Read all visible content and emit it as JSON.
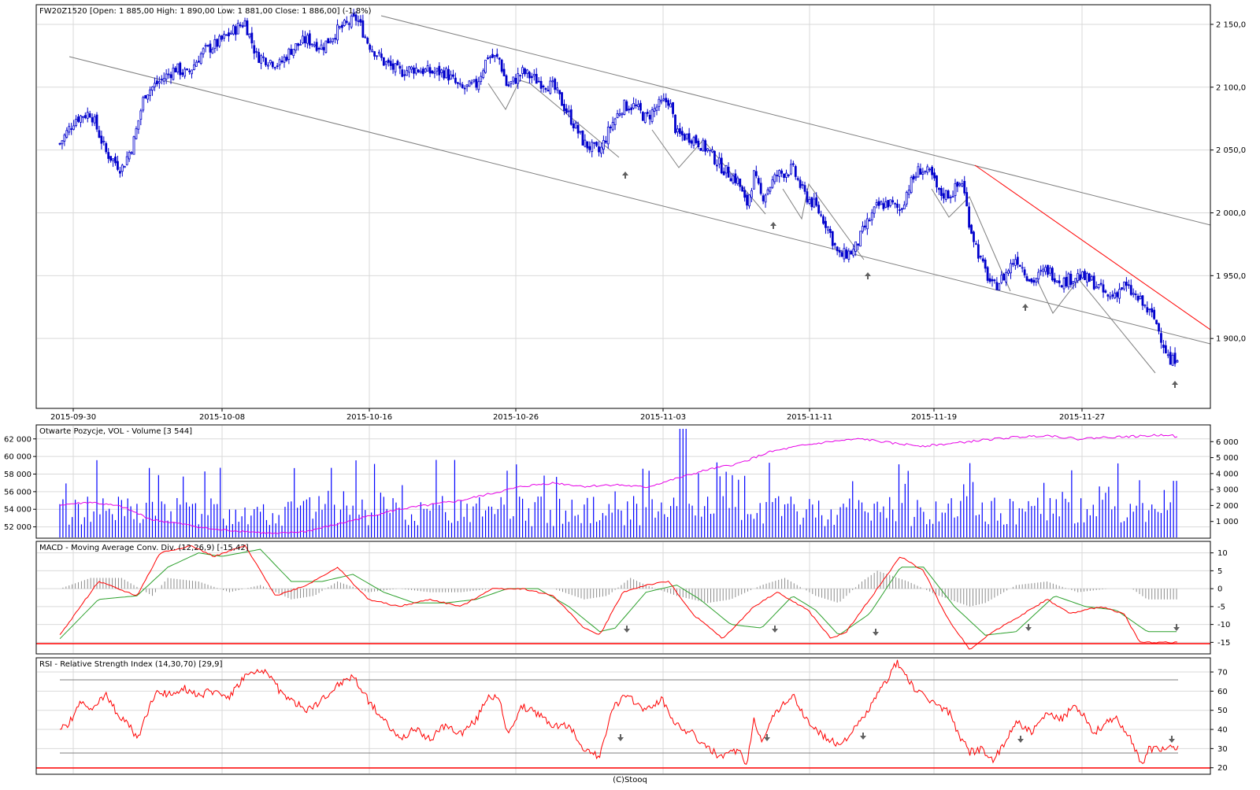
{
  "app": {
    "footer": "(C)Stooq"
  },
  "colors": {
    "candle": "#0000cc",
    "channel": "#7f7f7f",
    "resistance": "#ff0000",
    "volume": "#0000ff",
    "open_interest": "#e600e6",
    "macd": "#ff0000",
    "signal": "#2ca02c",
    "histogram": "#8c8c8c",
    "rsi": "#ff0000",
    "grid": "#d9d9d9",
    "arrow": "#606060"
  },
  "chart_data": [
    {
      "id": "price",
      "type": "candlestick",
      "title": "FW20Z1520 [Open: 1 885,00  High: 1 890,00  Low: 1 881,00  Close: 1 886,00] (-1,8%)",
      "x_ticks": [
        "2015-09-30",
        "2015-10-08",
        "2015-10-16",
        "2015-10-26",
        "2015-11-03",
        "2015-11-11",
        "2015-11-19",
        "2015-11-27"
      ],
      "y_ticks": [
        2150,
        2100,
        2050,
        2000,
        1950,
        1900
      ],
      "y_tick_labels": [
        "2 150,0",
        "2 100,0",
        "2 050,0",
        "2 000,0",
        "1 950,0",
        "1 900,0"
      ],
      "ylim": [
        1845,
        2165
      ],
      "anchors": [
        [
          0,
          2055
        ],
        [
          20,
          2075
        ],
        [
          40,
          2080
        ],
        [
          60,
          2048
        ],
        [
          80,
          2035
        ],
        [
          95,
          2055
        ],
        [
          110,
          2095
        ],
        [
          130,
          2105
        ],
        [
          150,
          2115
        ],
        [
          165,
          2110
        ],
        [
          185,
          2128
        ],
        [
          205,
          2135
        ],
        [
          225,
          2145
        ],
        [
          240,
          2152
        ],
        [
          255,
          2125
        ],
        [
          270,
          2122
        ],
        [
          285,
          2118
        ],
        [
          300,
          2130
        ],
        [
          320,
          2138
        ],
        [
          340,
          2132
        ],
        [
          360,
          2145
        ],
        [
          385,
          2155
        ],
        [
          400,
          2135
        ],
        [
          420,
          2120
        ],
        [
          440,
          2112
        ],
        [
          460,
          2115
        ],
        [
          480,
          2112
        ],
        [
          500,
          2112
        ],
        [
          520,
          2098
        ],
        [
          540,
          2102
        ],
        [
          555,
          2125
        ],
        [
          570,
          2122
        ],
        [
          580,
          2100
        ],
        [
          600,
          2112
        ],
        [
          620,
          2105
        ],
        [
          640,
          2100
        ],
        [
          660,
          2078
        ],
        [
          680,
          2055
        ],
        [
          700,
          2048
        ],
        [
          715,
          2070
        ],
        [
          730,
          2085
        ],
        [
          745,
          2085
        ],
        [
          760,
          2075
        ],
        [
          775,
          2085
        ],
        [
          790,
          2090
        ],
        [
          800,
          2062
        ],
        [
          820,
          2060
        ],
        [
          840,
          2050
        ],
        [
          860,
          2035
        ],
        [
          880,
          2025
        ],
        [
          890,
          2005
        ],
        [
          900,
          2030
        ],
        [
          910,
          2012
        ],
        [
          930,
          2030
        ],
        [
          950,
          2035
        ],
        [
          965,
          2015
        ],
        [
          980,
          2005
        ],
        [
          995,
          1990
        ],
        [
          1010,
          1965
        ],
        [
          1030,
          1970
        ],
        [
          1045,
          1990
        ],
        [
          1060,
          2005
        ],
        [
          1075,
          2008
        ],
        [
          1090,
          2002
        ],
        [
          1100,
          2020
        ],
        [
          1115,
          2035
        ],
        [
          1130,
          2030
        ],
        [
          1140,
          2015
        ],
        [
          1155,
          2015
        ],
        [
          1170,
          2025
        ],
        [
          1180,
          1990
        ],
        [
          1195,
          1960
        ],
        [
          1210,
          1940
        ],
        [
          1225,
          1950
        ],
        [
          1240,
          1965
        ],
        [
          1260,
          1945
        ],
        [
          1280,
          1955
        ],
        [
          1300,
          1945
        ],
        [
          1320,
          1950
        ],
        [
          1340,
          1945
        ],
        [
          1360,
          1932
        ],
        [
          1380,
          1942
        ],
        [
          1400,
          1930
        ],
        [
          1420,
          1915
        ],
        [
          1430,
          1898
        ],
        [
          1440,
          1880
        ],
        [
          1450,
          1888
        ]
      ]
    },
    {
      "id": "volume",
      "type": "bar",
      "title": "Otwarte Pozycje, VOL - Volume [3 544]",
      "left_ticks": [
        62000,
        60000,
        58000,
        56000,
        54000,
        52000
      ],
      "left_tick_labels": [
        "62 000",
        "60 000",
        "58 000",
        "56 000",
        "54 000",
        "52 000"
      ],
      "right_ticks": [
        6000,
        5000,
        4000,
        3000,
        2000,
        1000
      ],
      "right_tick_labels": [
        "6 000",
        "5 000",
        "4 000",
        "3 000",
        "2 000",
        "1 000"
      ],
      "left_lim": [
        50800,
        63500
      ],
      "right_lim": [
        0,
        7000
      ],
      "open_interest_anchors": [
        [
          0,
          54500
        ],
        [
          40,
          54800
        ],
        [
          80,
          54300
        ],
        [
          120,
          52800
        ],
        [
          160,
          52300
        ],
        [
          200,
          51700
        ],
        [
          240,
          51500
        ],
        [
          280,
          51200
        ],
        [
          320,
          51500
        ],
        [
          360,
          52300
        ],
        [
          400,
          53200
        ],
        [
          440,
          54000
        ],
        [
          480,
          54500
        ],
        [
          520,
          55000
        ],
        [
          560,
          55800
        ],
        [
          600,
          56600
        ],
        [
          640,
          57000
        ],
        [
          680,
          56600
        ],
        [
          720,
          56800
        ],
        [
          760,
          56500
        ],
        [
          800,
          57500
        ],
        [
          840,
          58500
        ],
        [
          880,
          59200
        ],
        [
          920,
          60500
        ],
        [
          960,
          61200
        ],
        [
          1000,
          61700
        ],
        [
          1040,
          62000
        ],
        [
          1080,
          61500
        ],
        [
          1120,
          61200
        ],
        [
          1160,
          61500
        ],
        [
          1200,
          61900
        ],
        [
          1240,
          62200
        ],
        [
          1280,
          62400
        ],
        [
          1320,
          62000
        ],
        [
          1360,
          62200
        ],
        [
          1400,
          62300
        ],
        [
          1440,
          62500
        ],
        [
          1450,
          62100
        ]
      ]
    },
    {
      "id": "macd",
      "type": "line",
      "title": "MACD - Moving Average Conv. Div. (12,26,9) [-15,42]",
      "y_ticks": [
        10,
        5,
        0,
        -5,
        -10,
        -15
      ],
      "ylim": [
        -18,
        13
      ],
      "macd_anchors": [
        [
          0,
          -13
        ],
        [
          50,
          2
        ],
        [
          100,
          -2
        ],
        [
          130,
          10
        ],
        [
          170,
          12
        ],
        [
          200,
          9
        ],
        [
          240,
          12
        ],
        [
          280,
          -2
        ],
        [
          320,
          1
        ],
        [
          360,
          6
        ],
        [
          400,
          -3
        ],
        [
          440,
          -5
        ],
        [
          480,
          -3
        ],
        [
          520,
          -5
        ],
        [
          560,
          0
        ],
        [
          600,
          0
        ],
        [
          640,
          -2
        ],
        [
          680,
          -11
        ],
        [
          700,
          -13
        ],
        [
          730,
          -1
        ],
        [
          760,
          1
        ],
        [
          790,
          2
        ],
        [
          820,
          -7
        ],
        [
          860,
          -14
        ],
        [
          900,
          -5
        ],
        [
          930,
          -1
        ],
        [
          970,
          -6
        ],
        [
          1000,
          -14
        ],
        [
          1020,
          -12
        ],
        [
          1060,
          0
        ],
        [
          1090,
          9
        ],
        [
          1120,
          5
        ],
        [
          1150,
          -8
        ],
        [
          1180,
          -17
        ],
        [
          1210,
          -12
        ],
        [
          1250,
          -7
        ],
        [
          1280,
          -3
        ],
        [
          1310,
          -7
        ],
        [
          1350,
          -5
        ],
        [
          1380,
          -7
        ],
        [
          1400,
          -15
        ],
        [
          1410,
          -15
        ]
      ],
      "signal_anchors": [
        [
          0,
          -14
        ],
        [
          50,
          -3
        ],
        [
          100,
          -2
        ],
        [
          140,
          6
        ],
        [
          180,
          10
        ],
        [
          210,
          9
        ],
        [
          260,
          11
        ],
        [
          300,
          2
        ],
        [
          340,
          2
        ],
        [
          380,
          4
        ],
        [
          420,
          -1
        ],
        [
          460,
          -4
        ],
        [
          500,
          -4
        ],
        [
          540,
          -3
        ],
        [
          580,
          0
        ],
        [
          620,
          0
        ],
        [
          660,
          -5
        ],
        [
          700,
          -12
        ],
        [
          720,
          -11
        ],
        [
          760,
          -1
        ],
        [
          800,
          1
        ],
        [
          830,
          -3
        ],
        [
          870,
          -10
        ],
        [
          910,
          -11
        ],
        [
          950,
          -2
        ],
        [
          980,
          -6
        ],
        [
          1010,
          -13
        ],
        [
          1050,
          -7
        ],
        [
          1090,
          6
        ],
        [
          1120,
          6
        ],
        [
          1160,
          -5
        ],
        [
          1200,
          -13
        ],
        [
          1240,
          -12
        ],
        [
          1290,
          -2
        ],
        [
          1330,
          -5
        ],
        [
          1370,
          -6
        ],
        [
          1410,
          -12
        ]
      ],
      "hist_anchors": [
        [
          0,
          0
        ],
        [
          40,
          3
        ],
        [
          80,
          3
        ],
        [
          120,
          -2
        ],
        [
          140,
          3
        ],
        [
          180,
          2
        ],
        [
          220,
          -1
        ],
        [
          260,
          1
        ],
        [
          300,
          -3
        ],
        [
          330,
          -2
        ],
        [
          360,
          2
        ],
        [
          400,
          -1
        ],
        [
          440,
          0
        ],
        [
          480,
          -1
        ],
        [
          520,
          -1
        ],
        [
          560,
          0
        ],
        [
          600,
          0
        ],
        [
          640,
          0
        ],
        [
          680,
          -3
        ],
        [
          710,
          -2
        ],
        [
          740,
          3
        ],
        [
          760,
          1
        ],
        [
          800,
          -2
        ],
        [
          840,
          -4
        ],
        [
          870,
          -3
        ],
        [
          910,
          1
        ],
        [
          940,
          3
        ],
        [
          980,
          -2
        ],
        [
          1010,
          -4
        ],
        [
          1040,
          2
        ],
        [
          1060,
          5
        ],
        [
          1100,
          2
        ],
        [
          1140,
          -2
        ],
        [
          1180,
          -5
        ],
        [
          1200,
          -4
        ],
        [
          1240,
          1
        ],
        [
          1280,
          2
        ],
        [
          1320,
          -1
        ],
        [
          1360,
          0
        ],
        [
          1390,
          0
        ],
        [
          1410,
          -3
        ]
      ]
    },
    {
      "id": "rsi",
      "type": "line",
      "title": "RSI - Relative Strength Index (14,30,70) [29,9]",
      "y_ticks": [
        70,
        60,
        50,
        40,
        30,
        20
      ],
      "ylim": [
        17,
        77
      ],
      "levels": [
        70,
        30
      ],
      "rsi_anchors": [
        [
          0,
          40
        ],
        [
          10,
          42
        ],
        [
          25,
          53
        ],
        [
          45,
          52
        ],
        [
          60,
          58
        ],
        [
          75,
          48
        ],
        [
          90,
          42
        ],
        [
          100,
          35
        ],
        [
          110,
          45
        ],
        [
          125,
          60
        ],
        [
          140,
          58
        ],
        [
          160,
          62
        ],
        [
          180,
          58
        ],
        [
          200,
          60
        ],
        [
          220,
          57
        ],
        [
          240,
          68
        ],
        [
          260,
          70
        ],
        [
          270,
          70
        ],
        [
          285,
          60
        ],
        [
          300,
          55
        ],
        [
          320,
          50
        ],
        [
          340,
          55
        ],
        [
          360,
          63
        ],
        [
          380,
          68
        ],
        [
          400,
          55
        ],
        [
          420,
          45
        ],
        [
          440,
          35
        ],
        [
          460,
          40
        ],
        [
          480,
          35
        ],
        [
          500,
          42
        ],
        [
          520,
          38
        ],
        [
          540,
          45
        ],
        [
          555,
          58
        ],
        [
          570,
          55
        ],
        [
          580,
          38
        ],
        [
          600,
          52
        ],
        [
          620,
          48
        ],
        [
          640,
          42
        ],
        [
          660,
          42
        ],
        [
          680,
          30
        ],
        [
          700,
          25
        ],
        [
          715,
          50
        ],
        [
          730,
          57
        ],
        [
          745,
          55
        ],
        [
          760,
          50
        ],
        [
          780,
          56
        ],
        [
          800,
          42
        ],
        [
          820,
          38
        ],
        [
          840,
          30
        ],
        [
          860,
          25
        ],
        [
          880,
          30
        ],
        [
          890,
          20
        ],
        [
          900,
          45
        ],
        [
          910,
          35
        ],
        [
          930,
          50
        ],
        [
          950,
          58
        ],
        [
          965,
          47
        ],
        [
          980,
          40
        ],
        [
          995,
          35
        ],
        [
          1010,
          32
        ],
        [
          1030,
          40
        ],
        [
          1045,
          48
        ],
        [
          1060,
          58
        ],
        [
          1075,
          68
        ],
        [
          1085,
          75
        ],
        [
          1095,
          70
        ],
        [
          1110,
          60
        ],
        [
          1130,
          55
        ],
        [
          1140,
          52
        ],
        [
          1155,
          48
        ],
        [
          1165,
          38
        ],
        [
          1180,
          28
        ],
        [
          1195,
          30
        ],
        [
          1210,
          24
        ],
        [
          1225,
          32
        ],
        [
          1240,
          45
        ],
        [
          1260,
          38
        ],
        [
          1280,
          48
        ],
        [
          1300,
          45
        ],
        [
          1315,
          53
        ],
        [
          1330,
          47
        ],
        [
          1340,
          38
        ],
        [
          1355,
          43
        ],
        [
          1370,
          45
        ],
        [
          1385,
          38
        ],
        [
          1395,
          28
        ],
        [
          1405,
          22
        ],
        [
          1412,
          30
        ]
      ]
    }
  ]
}
